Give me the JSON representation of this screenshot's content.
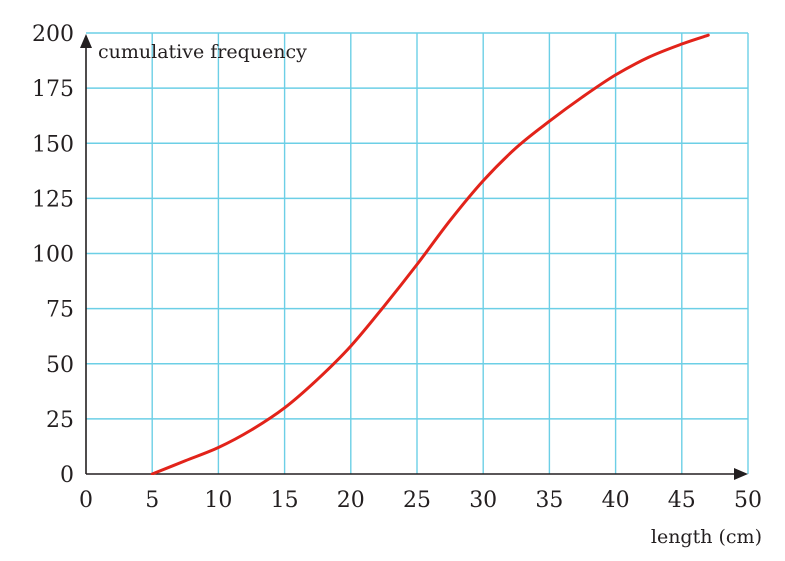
{
  "chart_data": {
    "type": "line",
    "xlabel": "length (cm)",
    "ylabel": "cumulative frequency",
    "xlim": [
      0,
      50
    ],
    "ylim": [
      0,
      200
    ],
    "x_ticks": [
      "0",
      "5",
      "10",
      "15",
      "20",
      "25",
      "30",
      "35",
      "40",
      "45",
      "50"
    ],
    "y_ticks": [
      "0",
      "25",
      "50",
      "75",
      "100",
      "125",
      "150",
      "175",
      "200"
    ],
    "grid": true,
    "series": [
      {
        "color": "#e2231a",
        "x": [
          5,
          7.5,
          10,
          12.5,
          15,
          17.5,
          20,
          22.5,
          25,
          27.5,
          30,
          32.5,
          35,
          37.5,
          40,
          42.5,
          45,
          47
        ],
        "y": [
          0,
          6,
          12,
          20,
          30,
          43,
          58,
          76,
          95,
          115,
          133,
          148,
          160,
          171,
          181,
          189,
          195,
          199
        ]
      }
    ]
  }
}
